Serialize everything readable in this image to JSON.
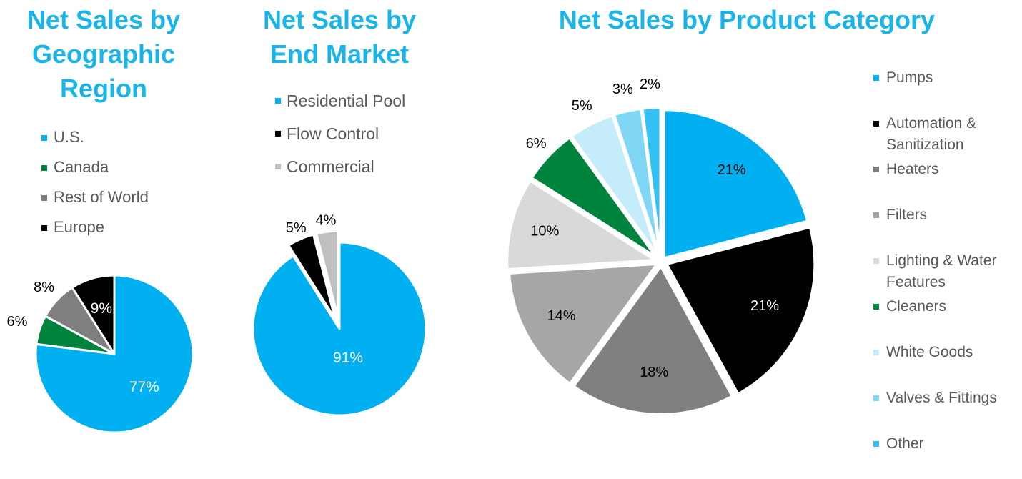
{
  "chart_data": [
    {
      "type": "pie",
      "title": "Net Sales by\nGeographic\nRegion",
      "slices": [
        {
          "label": "U.S.",
          "value": 77,
          "display": "77%",
          "color": "#00b0f0"
        },
        {
          "label": "Canada",
          "value": 6,
          "display": "6%",
          "color": "#00843d"
        },
        {
          "label": "Rest of World",
          "value": 8,
          "display": "8%",
          "color": "#7f7f7f"
        },
        {
          "label": "Europe",
          "value": 9,
          "display": "9%",
          "color": "#000000"
        }
      ]
    },
    {
      "type": "pie",
      "title": "Net Sales by\nEnd Market",
      "slices": [
        {
          "label": "Residential Pool",
          "value": 91,
          "display": "91%",
          "color": "#00b0f0"
        },
        {
          "label": "Flow Control",
          "value": 5,
          "display": "5%",
          "color": "#000000"
        },
        {
          "label": "Commercial",
          "value": 4,
          "display": "4%",
          "color": "#bfbfbf"
        }
      ]
    },
    {
      "type": "pie",
      "title": "Net Sales by Product Category",
      "slices": [
        {
          "label": "Pumps",
          "value": 21,
          "display": "21%",
          "color": "#00b0f0"
        },
        {
          "label": "Automation &\nSanitization",
          "value": 21,
          "display": "21%",
          "color": "#000000"
        },
        {
          "label": "Heaters",
          "value": 18,
          "display": "18%",
          "color": "#808080"
        },
        {
          "label": "Filters",
          "value": 14,
          "display": "14%",
          "color": "#a6a6a6"
        },
        {
          "label": "Lighting & Water\nFeatures",
          "value": 10,
          "display": "10%",
          "color": "#d9d9d9"
        },
        {
          "label": "Cleaners",
          "value": 6,
          "display": "6%",
          "color": "#00843d"
        },
        {
          "label": "White Goods",
          "value": 5,
          "display": "5%",
          "color": "#c5ecfa"
        },
        {
          "label": "Valves & Fittings",
          "value": 3,
          "display": "3%",
          "color": "#7fd6f5"
        },
        {
          "label": "Other",
          "value": 2,
          "display": "2%",
          "color": "#33c1f3"
        }
      ]
    }
  ]
}
